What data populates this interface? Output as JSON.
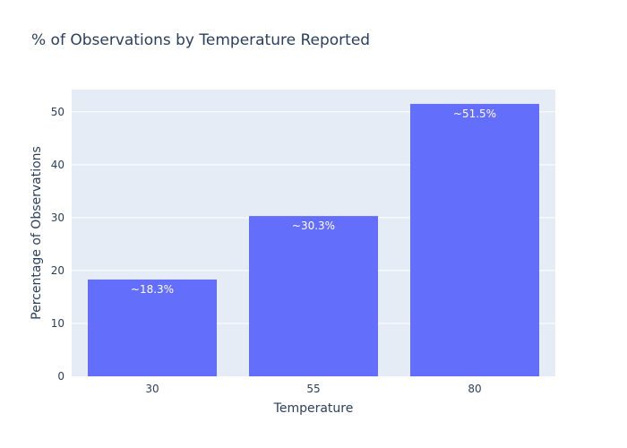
{
  "chart_data": {
    "type": "bar",
    "title": "% of Observations by Temperature Reported",
    "xlabel": "Temperature",
    "ylabel": "Percentage of Observations",
    "categories": [
      "30",
      "55",
      "80"
    ],
    "values": [
      18.3,
      30.3,
      51.5
    ],
    "data_labels": [
      "~18.3%",
      "~30.3%",
      "~51.5%"
    ],
    "ylim": [
      0,
      54.2
    ],
    "yticks": [
      0,
      10,
      20,
      30,
      40,
      50
    ],
    "grid": true,
    "colors": {
      "bar": "#636efa",
      "plot_bg": "#e5ecf6",
      "grid": "#ffffff",
      "text": "#2a3f5f",
      "data_label": "#ffffff"
    }
  }
}
